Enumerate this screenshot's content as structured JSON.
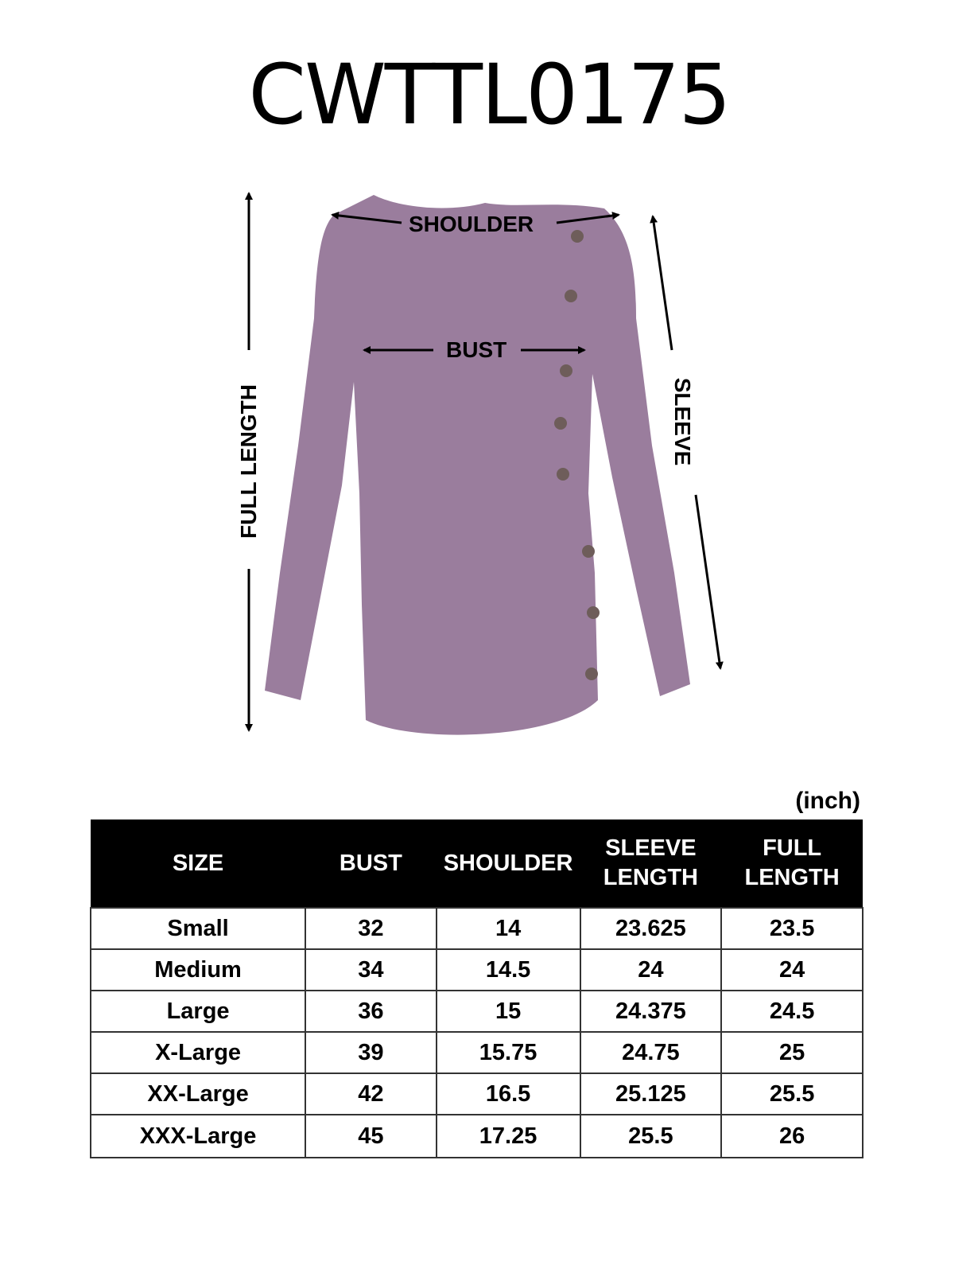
{
  "title": "CWTTL0175",
  "garment_color": "#9a7d9d",
  "measure_labels": {
    "shoulder": "SHOULDER",
    "bust": "BUST",
    "full_length": "FULL LENGTH",
    "sleeve": "SLEEVE"
  },
  "unit": "(inch)",
  "table": {
    "headers": [
      "SIZE",
      "BUST",
      "SHOULDER",
      "SLEEVE LENGTH",
      "FULL LENGTH"
    ],
    "rows": [
      [
        "Small",
        "32",
        "14",
        "23.625",
        "23.5"
      ],
      [
        "Medium",
        "34",
        "14.5",
        "24",
        "24"
      ],
      [
        "Large",
        "36",
        "15",
        "24.375",
        "24.5"
      ],
      [
        "X-Large",
        "39",
        "15.75",
        "24.75",
        "25"
      ],
      [
        "XX-Large",
        "42",
        "16.5",
        "25.125",
        "25.5"
      ],
      [
        "XXX-Large",
        "45",
        "17.25",
        "25.5",
        "26"
      ]
    ]
  }
}
